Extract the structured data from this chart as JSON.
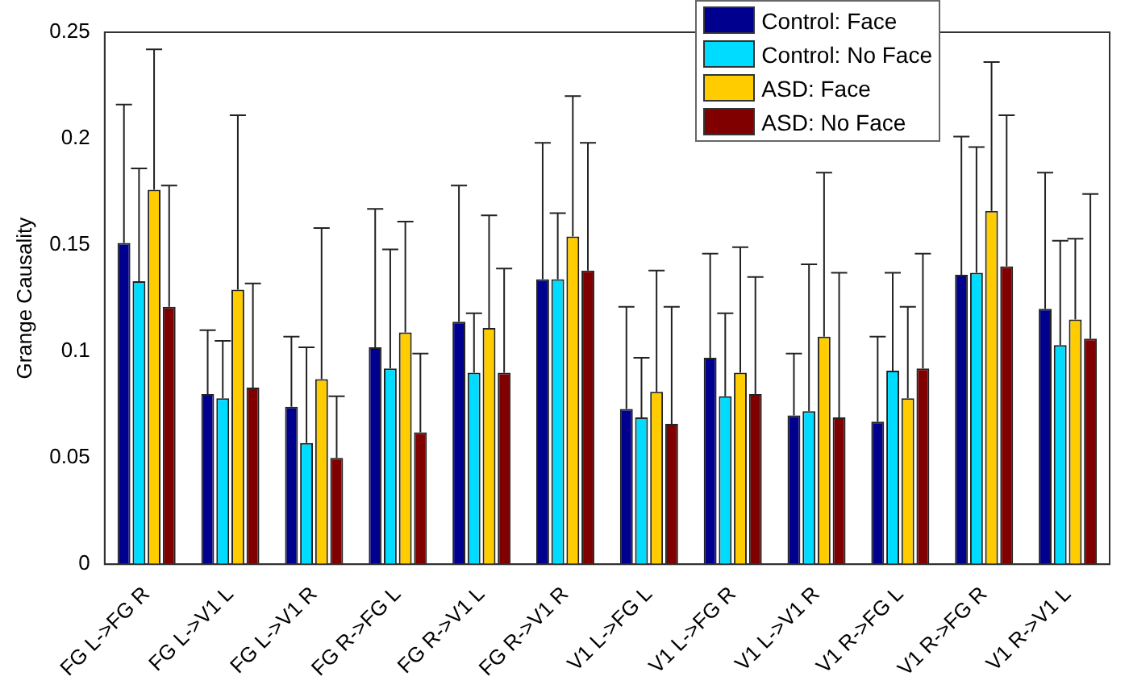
{
  "chart_data": {
    "type": "bar",
    "ylabel": "Grange Causality",
    "categories": [
      "FG L->FG R",
      "FG L->V1 L",
      "FG L->V1 R",
      "FG R->FG L",
      "FG R->V1 L",
      "FG R->V1 R",
      "V1 L->FG L",
      "V1 L->FG R",
      "V1 L->V1 R",
      "V1 R->FG L",
      "V1 R->FG R",
      "V1 R->V1 L"
    ],
    "series": [
      {
        "name": "Control: Face",
        "color": "#00008f",
        "values": [
          0.151,
          0.08,
          0.074,
          0.102,
          0.114,
          0.134,
          0.073,
          0.097,
          0.07,
          0.067,
          0.136,
          0.12
        ],
        "errors": [
          [
            0.151,
            0.216
          ],
          [
            0.08,
            0.11
          ],
          [
            0.074,
            0.107
          ],
          [
            0.102,
            0.167
          ],
          [
            0.114,
            0.178
          ],
          [
            0.134,
            0.198
          ],
          [
            0.073,
            0.121
          ],
          [
            0.097,
            0.146
          ],
          [
            0.07,
            0.099
          ],
          [
            0.067,
            0.107
          ],
          [
            0.136,
            0.201
          ],
          [
            0.12,
            0.184
          ]
        ]
      },
      {
        "name": "Control: No Face",
        "color": "#00dcff",
        "values": [
          0.133,
          0.078,
          0.057,
          0.092,
          0.09,
          0.134,
          0.069,
          0.079,
          0.072,
          0.091,
          0.137,
          0.103
        ],
        "errors": [
          [
            0.133,
            0.186
          ],
          [
            0.078,
            0.105
          ],
          [
            0.057,
            0.102
          ],
          [
            0.092,
            0.148
          ],
          [
            0.09,
            0.118
          ],
          [
            0.134,
            0.165
          ],
          [
            0.069,
            0.097
          ],
          [
            0.079,
            0.118
          ],
          [
            0.072,
            0.141
          ],
          [
            0.091,
            0.137
          ],
          [
            0.137,
            0.196
          ],
          [
            0.103,
            0.152
          ]
        ]
      },
      {
        "name": "ASD: Face",
        "color": "#ffcc00",
        "values": [
          0.176,
          0.129,
          0.087,
          0.109,
          0.111,
          0.154,
          0.081,
          0.09,
          0.107,
          0.078,
          0.166,
          0.115
        ],
        "errors": [
          [
            0.176,
            0.242
          ],
          [
            0.129,
            0.211
          ],
          [
            0.087,
            0.158
          ],
          [
            0.109,
            0.161
          ],
          [
            0.111,
            0.164
          ],
          [
            0.154,
            0.22
          ],
          [
            0.081,
            0.138
          ],
          [
            0.09,
            0.149
          ],
          [
            0.107,
            0.184
          ],
          [
            0.078,
            0.121
          ],
          [
            0.166,
            0.236
          ],
          [
            0.115,
            0.153
          ]
        ]
      },
      {
        "name": "ASD: No Face",
        "color": "#800000",
        "values": [
          0.121,
          0.083,
          0.05,
          0.062,
          0.09,
          0.138,
          0.066,
          0.08,
          0.069,
          0.092,
          0.14,
          0.106
        ],
        "errors": [
          [
            0.121,
            0.178
          ],
          [
            0.083,
            0.132
          ],
          [
            0.05,
            0.079
          ],
          [
            0.062,
            0.099
          ],
          [
            0.09,
            0.139
          ],
          [
            0.138,
            0.198
          ],
          [
            0.066,
            0.121
          ],
          [
            0.08,
            0.135
          ],
          [
            0.069,
            0.137
          ],
          [
            0.092,
            0.146
          ],
          [
            0.14,
            0.211
          ],
          [
            0.106,
            0.174
          ]
        ]
      }
    ],
    "ylim": [
      0,
      0.25
    ],
    "yticks": [
      0,
      0.05,
      0.1,
      0.15,
      0.2,
      0.25
    ],
    "grid": false,
    "legend": "top right"
  }
}
